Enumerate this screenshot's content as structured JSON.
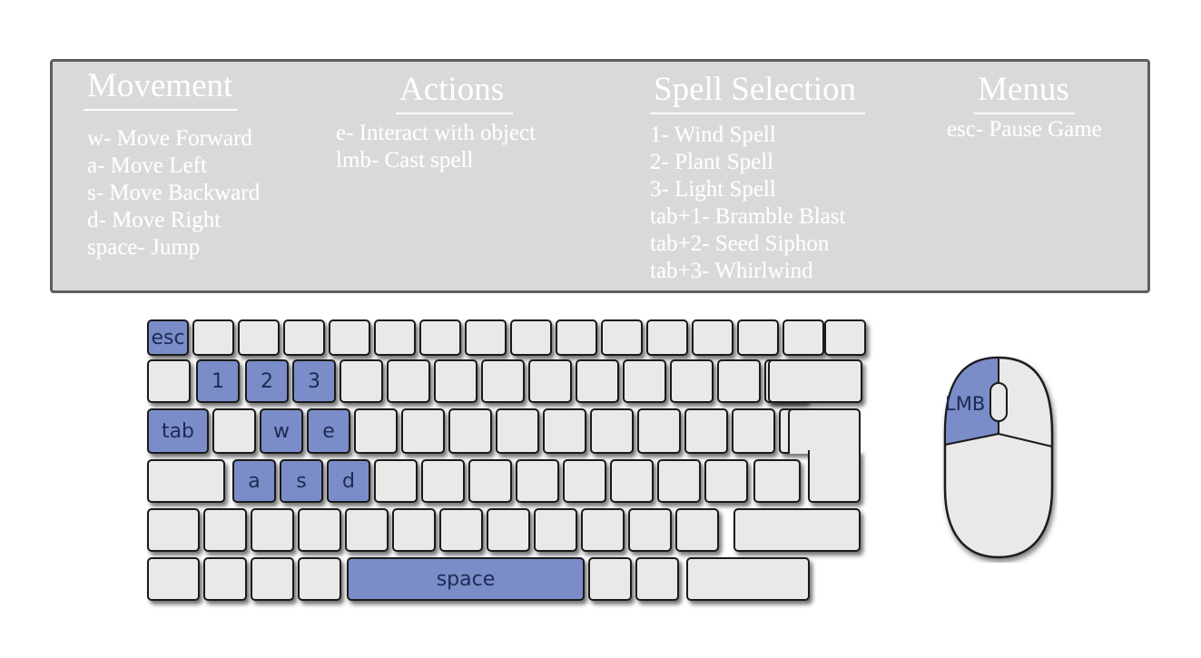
{
  "controls": {
    "movement": {
      "title": "Movement",
      "items": [
        "w- Move Forward",
        "a- Move Left",
        "s- Move Backward",
        "d- Move Right",
        "space- Jump"
      ]
    },
    "actions": {
      "title": "Actions",
      "items": [
        "e- Interact with object",
        "lmb- Cast spell"
      ]
    },
    "spell_selection": {
      "title": "Spell Selection",
      "items": [
        "1- Wind Spell",
        "2- Plant Spell",
        "3- Light Spell",
        "tab+1- Bramble Blast",
        "tab+2- Seed Siphon",
        "tab+3- Whirlwind"
      ]
    },
    "menus": {
      "title": "Menus",
      "items": [
        "esc- Pause Game"
      ]
    }
  },
  "keyboard": {
    "highlight_color": "#7b8dc8",
    "key_color": "#e9e9e9",
    "labels": {
      "esc": "esc",
      "one": "1",
      "two": "2",
      "three": "3",
      "tab": "tab",
      "w": "w",
      "e": "e",
      "a": "a",
      "s": "s",
      "d": "d",
      "space": "space"
    }
  },
  "mouse": {
    "left_button_label": "LMB",
    "highlight_color": "#7b8dc8"
  }
}
